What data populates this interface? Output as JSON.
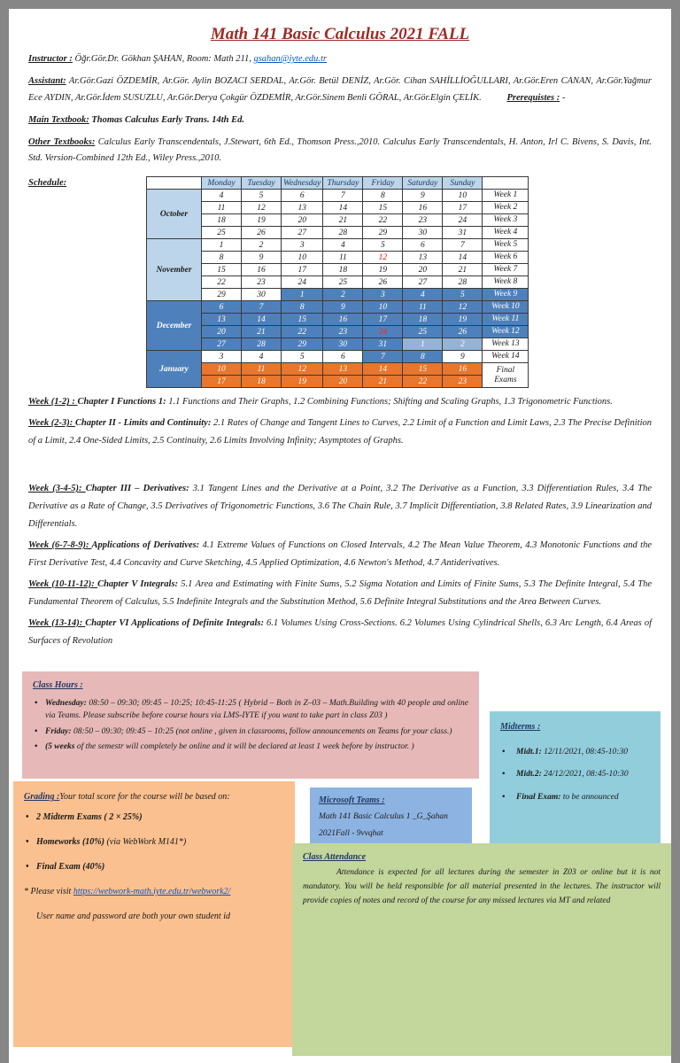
{
  "title": "Math 141 Basic Calculus 2021 FALL",
  "instructor": {
    "label": "Instructor :",
    "text": " Öğr.Gör.Dr. Gökhan ŞAHAN,  Room:  Math 211,  ",
    "email": "gsahan@iyte.edu.tr"
  },
  "assistant": {
    "label": "Assistant:",
    "text": " Ar.Gör.Gazi ÖZDEMİR, Ar.Gör. Aylin BOZACI SERDAL, Ar.Gör. Betül DENİZ, Ar.Gör. Cihan SAHİLLİOĞULLARI, Ar.Gör.Eren CANAN, Ar.Gör.Yağmur Ece AYDIN, Ar.Gör.İdem SUSUZLU, Ar.Gör.Derya Çokgür ÖZDEMİR, Ar.Gör.Sinem Benli GÖRAL, Ar.Gör.Elgin ÇELİK.",
    "prereq_label": "Prerequistes :",
    "prereq_value": "-"
  },
  "textbooks": {
    "main_label": "Main Textbook:",
    "main": "Thomas Calculus Early Trans. 14th Ed.",
    "other_label": "Other Textbooks:",
    "other": " Calculus Early Transcendentals, J.Stewart, 6th Ed., Thomson Press.,2010. Calculus Early Transcendentals, H. Anton, Irl C. Bivens, S. Davis, Int. Std. Version-Combined 12th Ed., Wiley Press.,2010."
  },
  "schedule": {
    "label": "Schedule:",
    "days": [
      "Monday",
      "Tuesday",
      "Wednesday",
      "Thursday",
      "Friday",
      "Saturday",
      "Sunday"
    ],
    "months": [
      {
        "name": "October",
        "start": 0,
        "span": 4,
        "style": "light"
      },
      {
        "name": "November",
        "start": 4,
        "span": 5,
        "style": "light"
      },
      {
        "name": "December",
        "start": 9,
        "span": 4,
        "style": "dark"
      },
      {
        "name": "January",
        "start": 13,
        "span": 3,
        "style": "dark"
      }
    ],
    "rows": [
      {
        "cells": [
          "4",
          "5",
          "6",
          "7",
          "8",
          "9",
          "10"
        ],
        "s": "ppppppp",
        "week": "Week 1",
        "ws": "p"
      },
      {
        "cells": [
          "11",
          "12",
          "13",
          "14",
          "15",
          "16",
          "17"
        ],
        "s": "ppppppp",
        "week": "Week 2",
        "ws": "p"
      },
      {
        "cells": [
          "18",
          "19",
          "20",
          "21",
          "22",
          "23",
          "24"
        ],
        "s": "ppppppp",
        "week": "Week 3",
        "ws": "p"
      },
      {
        "cells": [
          "25",
          "26",
          "27",
          "28",
          "29",
          "30",
          "31"
        ],
        "s": "ppppppp",
        "week": "Week 4",
        "ws": "p"
      },
      {
        "cells": [
          "1",
          "2",
          "3",
          "4",
          "5",
          "6",
          "7"
        ],
        "s": "ppppppp",
        "week": "Week 5",
        "ws": "p"
      },
      {
        "cells": [
          "8",
          "9",
          "10",
          "11",
          "12",
          "13",
          "14"
        ],
        "s": "pppprpp",
        "week": "Week 6",
        "ws": "p"
      },
      {
        "cells": [
          "15",
          "16",
          "17",
          "18",
          "19",
          "20",
          "21"
        ],
        "s": "ppppppp",
        "week": "Week 7",
        "ws": "p"
      },
      {
        "cells": [
          "22",
          "23",
          "24",
          "25",
          "26",
          "27",
          "28"
        ],
        "s": "ppppppp",
        "week": "Week 8",
        "ws": "p"
      },
      {
        "cells": [
          "29",
          "30",
          "1",
          "2",
          "3",
          "4",
          "5"
        ],
        "s": "ppbbbbb",
        "week": "Week 9",
        "ws": "b"
      },
      {
        "cells": [
          "6",
          "7",
          "8",
          "9",
          "10",
          "11",
          "12"
        ],
        "s": "bbbbbbb",
        "week": "Week 10",
        "ws": "b"
      },
      {
        "cells": [
          "13",
          "14",
          "15",
          "16",
          "17",
          "18",
          "19"
        ],
        "s": "bbbbbbb",
        "week": "Week 11",
        "ws": "b"
      },
      {
        "cells": [
          "20",
          "21",
          "22",
          "23",
          "24",
          "25",
          "26"
        ],
        "s": "bbbbRbb",
        "week": "Week 12",
        "ws": "b"
      },
      {
        "cells": [
          "27",
          "28",
          "29",
          "30",
          "31",
          "1",
          "2"
        ],
        "s": "bbbbbll",
        "week": "Week 13",
        "ws": "p"
      },
      {
        "cells": [
          "3",
          "4",
          "5",
          "6",
          "7",
          "8",
          "9"
        ],
        "s": "ppppbbp",
        "week": "Week 14",
        "ws": "p"
      },
      {
        "cells": [
          "10",
          "11",
          "12",
          "13",
          "14",
          "15",
          "16"
        ],
        "s": "ooooooo",
        "week": "Final\nExams",
        "ws": "p",
        "wspan": 2
      },
      {
        "cells": [
          "17",
          "18",
          "19",
          "20",
          "21",
          "22",
          "23"
        ],
        "s": "ooooooo",
        "week": null
      }
    ]
  },
  "weeks": [
    {
      "label": "Week (1-2) :",
      "chapter": "Chapter I Functions 1:",
      "text": "1.1 Functions and Their Graphs, 1.2 Combining Functions; Shifting and Scaling Graphs, 1.3 Trigonometric Functions."
    },
    {
      "label": "Week (2-3):",
      "chapter": "Chapter II - Limits and Continuity:",
      "text": "2.1 Rates of Change and Tangent Lines to Curves, 2.2 Limit of a Function and Limit Laws, 2.3 The Precise Definition of a Limit, 2.4 One-Sided Limits, 2.5 Continuity, 2.6 Limits Involving Infinity; Asymptotes of Graphs."
    },
    {
      "label": "Week (3-4-5):",
      "chapter": "Chapter III – Derivatives:",
      "text": "3.1 Tangent Lines and the Derivative at a Point, 3.2 The Derivative as a Function, 3.3 Differentiation Rules, 3.4 The Derivative as a Rate of Change, 3.5 Derivatives of Trigonometric Functions, 3.6 The Chain Rule, 3.7 Implicit Differentiation, 3.8 Related Rates, 3.9 Linearization and Differentials."
    },
    {
      "label": "Week  (6-7-8-9):",
      "chapter": "Applications of Derivatives:",
      "text": "4.1 Extreme Values of Functions on Closed Intervals, 4.2 The Mean Value Theorem, 4.3 Monotonic Functions and the First Derivative Test, 4.4 Concavity and Curve Sketching, 4.5 Applied Optimization, 4.6 Newton's Method, 4.7 Antiderivatives."
    },
    {
      "label": "Week (10-11-12):",
      "chapter": "Chapter V Integrals:",
      "text": "5.1 Area and Estimating with Finite Sums, 5.2 Sigma Notation and Limits of Finite Sums, 5.3 The Definite Integral, 5.4 The Fundamental Theorem of Calculus, 5.5 Indefinite Integrals and the Substitution Method, 5.6 Definite Integral Substitutions and the Area Between Curves."
    },
    {
      "label": "Week (13-14):",
      "chapter": "Chapter VI Applications of Definite Integrals:",
      "text": "6.1 Volumes Using Cross-Sections. 6.2 Volumes Using Cylindrical Shells, 6.3 Arc Length, 6.4 Areas of Surfaces of Revolution"
    }
  ],
  "class_hours": {
    "title": "Class Hours :",
    "bullets": [
      {
        "bold": "Wednesday:",
        "text": "  08:50 – 09:30; 09:45 – 10:25; 10:45-11:25 ( Hybrid – Both in Z–03 – Math.Building with 40 people and online via Teams. Please subscribe before course hours via LMS-IYTE if you want to take part in class Z03 )"
      },
      {
        "bold": "Friday:",
        "text": "   08:50 – 09:30; 09:45 – 10:25 (not online , given in classrooms, follow announcements on Teams for your class.)"
      },
      {
        "bold": "(5 weeks",
        "text": " of the semestr will completely be online and it will be declared at least 1 week before by instructor. )"
      }
    ]
  },
  "midterms": {
    "title": "Midterms :",
    "items": [
      {
        "bold": "Midt.1:",
        "text": "   12/11/2021,    08:45-10:30"
      },
      {
        "bold": "Midt.2:",
        "text": "  24/12/2021,   08:45-10:30"
      },
      {
        "bold": "Final Exam:",
        "text": " to be announced"
      }
    ]
  },
  "grading": {
    "title": "Grading :",
    "intro": "Your total score for the course will be based on:",
    "bullets": [
      {
        "bold": "2 Midterm Exams ( 2  ×  25%)",
        "text": ""
      },
      {
        "bold": "Homeworks  (10%)",
        "text": " (via WebWork M141*)"
      },
      {
        "bold": "Final Exam (40%)",
        "text": ""
      }
    ],
    "note_label": "* Please visit  ",
    "note_link": "https://webwork-math.iyte.edu.tr/webwork2/",
    "note2": "User name and password are both your own student id"
  },
  "teams": {
    "title": "Microsoft Teams :",
    "line1": "Math 141 Basic Calculus 1 _G_Şahan",
    "line2": "2021Fall   -   9vvqhat"
  },
  "attendance": {
    "title": "Class Attendance",
    "text": "Attendance is expected for all lectures during the semester in Z03 or online but it is not mandatory. You will be held responsible for all material presented in the lectures. The instructor will provide copies of notes and record of the course for any missed lectures via MT and related"
  }
}
